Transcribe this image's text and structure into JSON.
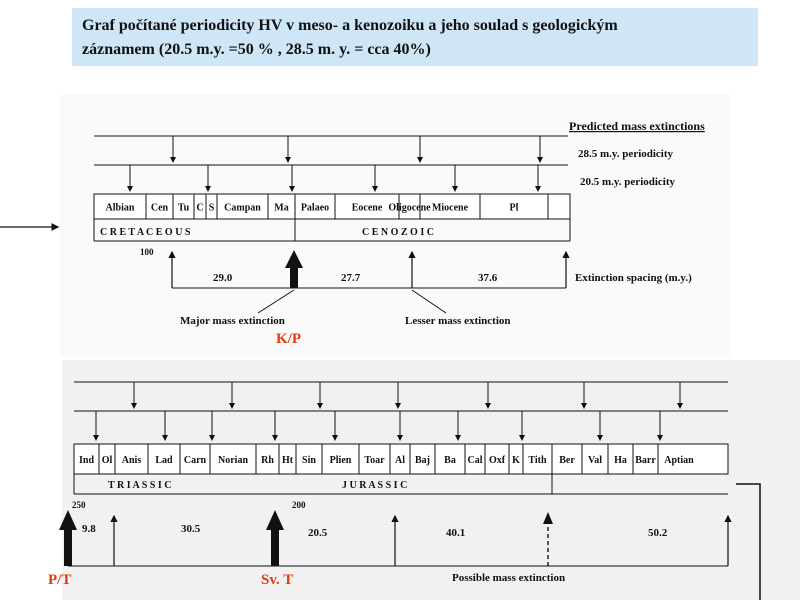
{
  "title": {
    "line1": "Graf počítané periodicity HV v meso- a kenozoiku a jeho soulad s geologickým",
    "line2": "záznamem (20.5 m.y. =50 % , 28.5 m. y. = cca 40%)"
  },
  "upper": {
    "legend": {
      "heading": "Predicted mass extinctions",
      "p28": "28.5 m.y. periodicity",
      "p20": "20.5 m.y. periodicity",
      "spacing": "Extinction spacing (m.y.)"
    },
    "stages": [
      "Albian",
      "Cen",
      "Tu",
      "C",
      "S",
      "Campan",
      "Ma",
      "Palaeo",
      "Eocene",
      "Oligocene",
      "Miocene",
      "Pl"
    ],
    "era_cretaceous": "C R E T A C E O U S",
    "era_cenozoic": "C E N O Z O I C",
    "tick_100": "100",
    "spacings": [
      "29.0",
      "27.7",
      "37.6"
    ],
    "major_label": "Major mass extinction",
    "lesser_label": "Lesser mass extinction",
    "kp_label": "K/P"
  },
  "lower": {
    "stages": [
      "Ind",
      "Ol",
      "Anis",
      "Lad",
      "Carn",
      "Norian",
      "Rh",
      "Ht",
      "Sin",
      "Plien",
      "Toar",
      "Al",
      "Baj",
      "Ba",
      "Cal",
      "Oxf",
      "K",
      "Tith",
      "Ber",
      "Val",
      "Ha",
      "Barr",
      "Aptian"
    ],
    "era_triassic": "T R I A S S I C",
    "era_jurassic": "J U R A S S I C",
    "tick_250": "250",
    "tick_200": "200",
    "spacings": [
      "9.8",
      "30.5",
      "20.5",
      "40.1",
      "50.2"
    ],
    "possible_label": "Possible mass extinction",
    "pt_label": "P/T",
    "svt_label": "Sv. T"
  },
  "colors": {
    "accent_red": "#e03a10",
    "title_bg": "#cfe6f7"
  }
}
